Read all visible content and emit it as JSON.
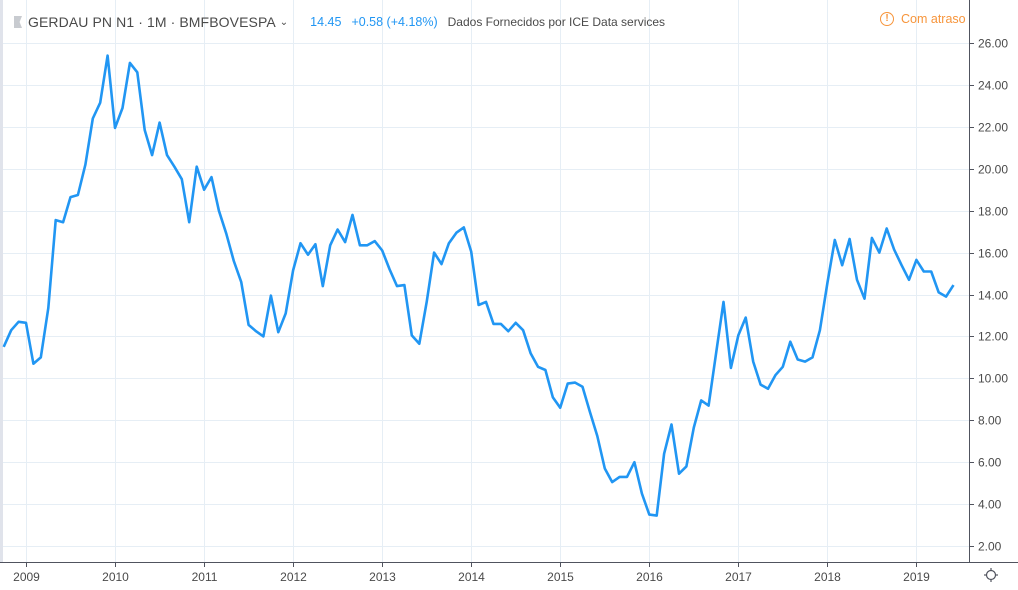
{
  "header": {
    "symbol_title": "GERDAU PN N1 · 1M · BMFBOVESPA",
    "last_price": "14.45",
    "change": "+0.58 (+4.18%)",
    "data_source": "Dados Fornecidos por ICE Data services",
    "delay_status": "Com atraso"
  },
  "colors": {
    "line": "#2196f3",
    "delay": "#f7953b",
    "grid": "#e6eef5"
  },
  "chart_data": {
    "type": "line",
    "title": "GERDAU PN N1 · 1M · BMFBOVESPA",
    "xlabel": "",
    "ylabel": "",
    "x_start": "2008-10",
    "x_interval": "1 month",
    "series": [
      {
        "name": "GERDAU PN N1",
        "values": [
          11.5,
          12.3,
          12.7,
          12.65,
          10.7,
          11.0,
          13.35,
          17.55,
          17.45,
          18.65,
          18.75,
          20.2,
          22.4,
          23.15,
          25.4,
          21.95,
          22.9,
          25.05,
          24.6,
          21.85,
          20.65,
          22.2,
          20.65,
          20.1,
          19.5,
          17.45,
          20.1,
          19.0,
          19.6,
          18.0,
          16.9,
          15.6,
          14.6,
          12.55,
          12.25,
          12.0,
          13.95,
          12.2,
          13.1,
          15.15,
          16.45,
          15.9,
          16.4,
          14.4,
          16.35,
          17.1,
          16.5,
          17.8,
          16.35,
          16.35,
          16.55,
          16.1,
          15.2,
          14.4,
          14.45,
          12.05,
          11.65,
          13.65,
          16.0,
          15.45,
          16.45,
          16.95,
          17.2,
          16.05,
          13.5,
          13.65,
          12.6,
          12.6,
          12.25,
          12.65,
          12.3,
          11.2,
          10.55,
          10.4,
          9.1,
          8.6,
          9.75,
          9.8,
          9.6,
          8.4,
          7.25,
          5.7,
          5.05,
          5.3,
          5.3,
          6.0,
          4.5,
          3.5,
          3.45,
          6.4,
          7.8,
          5.45,
          5.8,
          7.65,
          8.95,
          8.7,
          11.2,
          13.65,
          10.5,
          12.05,
          12.9,
          10.8,
          9.7,
          9.5,
          10.15,
          10.55,
          11.75,
          10.9,
          10.8,
          11.0,
          12.3,
          14.55,
          16.6,
          15.4,
          16.65,
          14.7,
          13.8,
          16.7,
          16.0,
          17.15,
          16.15,
          15.4,
          14.7,
          15.65,
          15.1,
          15.1,
          14.1,
          13.9,
          14.45
        ]
      }
    ],
    "x_ticks": [
      "2009",
      "2010",
      "2011",
      "2012",
      "2013",
      "2014",
      "2015",
      "2016",
      "2017",
      "2018",
      "2019"
    ],
    "y_ticks": [
      "2.00",
      "4.00",
      "6.00",
      "8.00",
      "10.00",
      "12.00",
      "14.00",
      "16.00",
      "18.00",
      "20.00",
      "22.00",
      "24.00",
      "26.00"
    ],
    "ylim": [
      1.2,
      27.2
    ],
    "grid": true
  }
}
